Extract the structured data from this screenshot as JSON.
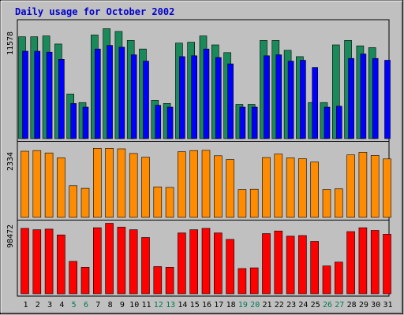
{
  "chart_data": [
    {
      "type": "bar",
      "panel": "top",
      "title": "Daily usage for October 2002",
      "ytick_label": "11578",
      "ylim": [
        0,
        13200
      ],
      "categories": [
        "1",
        "2",
        "3",
        "4",
        "5",
        "6",
        "7",
        "8",
        "9",
        "10",
        "11",
        "12",
        "13",
        "14",
        "15",
        "16",
        "17",
        "18",
        "19",
        "20",
        "21",
        "22",
        "23",
        "24",
        "25",
        "26",
        "27",
        "28",
        "29",
        "30",
        "31"
      ],
      "weekend_days": [
        "5",
        "6",
        "12",
        "13",
        "19",
        "20",
        "26",
        "27"
      ],
      "series": [
        {
          "color": "#1a8a5a",
          "values": [
            11300,
            11300,
            11400,
            10500,
            4950,
            4000,
            11500,
            12200,
            11900,
            10900,
            9950,
            4250,
            3900,
            10600,
            10700,
            11400,
            10400,
            9550,
            3800,
            3800,
            10900,
            10900,
            9800,
            9100,
            4000,
            4000,
            10400,
            10900,
            10300,
            10100,
            0
          ]
        },
        {
          "color": "#0000ff",
          "values": [
            9700,
            9700,
            9600,
            8800,
            3900,
            3500,
            9950,
            10350,
            10150,
            9300,
            8600,
            3700,
            3500,
            9100,
            9200,
            9950,
            9000,
            8300,
            3500,
            3500,
            9200,
            9300,
            8600,
            8700,
            7900,
            3500,
            3600,
            8900,
            9400,
            8900,
            8700
          ]
        }
      ]
    },
    {
      "type": "bar",
      "panel": "middle",
      "ytick_label": "2334",
      "ylim": [
        0,
        2600
      ],
      "categories": [
        "1",
        "2",
        "3",
        "4",
        "5",
        "6",
        "7",
        "8",
        "9",
        "10",
        "11",
        "12",
        "13",
        "14",
        "15",
        "16",
        "17",
        "18",
        "19",
        "20",
        "21",
        "22",
        "23",
        "24",
        "25",
        "26",
        "27",
        "28",
        "29",
        "30",
        "31"
      ],
      "series": [
        {
          "color": "#ff8c00",
          "values": [
            2300,
            2320,
            2240,
            2070,
            1100,
            1010,
            2400,
            2400,
            2380,
            2220,
            2090,
            1060,
            1040,
            2280,
            2320,
            2330,
            2140,
            2010,
            970,
            980,
            2080,
            2200,
            2070,
            2040,
            1920,
            970,
            990,
            2170,
            2260,
            2150,
            2030
          ]
        }
      ]
    },
    {
      "type": "bar",
      "panel": "bottom",
      "ytick_label": "98472",
      "ylim": [
        0,
        112000
      ],
      "categories": [
        "1",
        "2",
        "3",
        "4",
        "5",
        "6",
        "7",
        "8",
        "9",
        "10",
        "11",
        "12",
        "13",
        "14",
        "15",
        "16",
        "17",
        "18",
        "19",
        "20",
        "21",
        "22",
        "23",
        "24",
        "25",
        "26",
        "27",
        "28",
        "29",
        "30",
        "31"
      ],
      "series": [
        {
          "color": "#ff0000",
          "values": [
            101000,
            99000,
            100000,
            91000,
            50000,
            41000,
            102000,
            109000,
            103000,
            99000,
            87000,
            42000,
            41000,
            94000,
            99000,
            101000,
            94000,
            84000,
            39000,
            40000,
            93000,
            97000,
            89000,
            90000,
            81000,
            43000,
            49000,
            96000,
            102000,
            98000,
            92000
          ]
        }
      ]
    }
  ]
}
